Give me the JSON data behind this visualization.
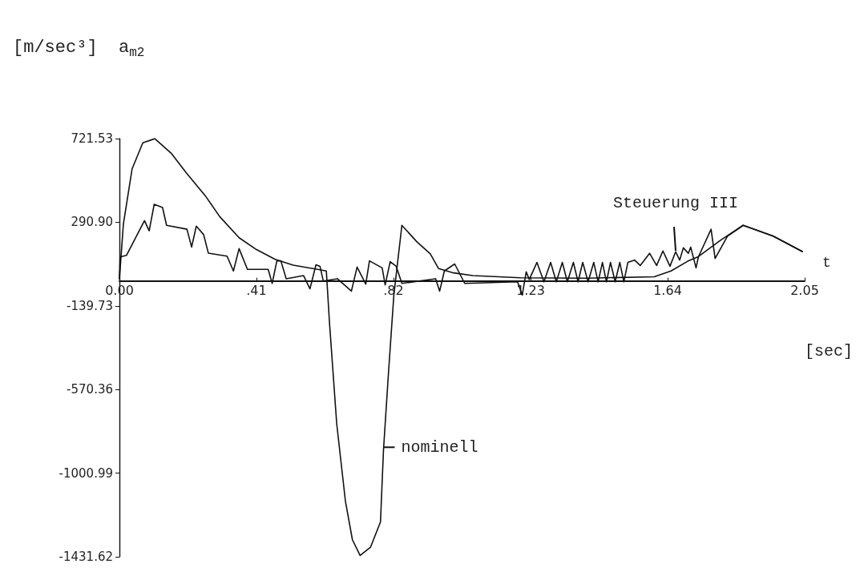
{
  "chart_data": {
    "type": "line",
    "xlabel": "t",
    "ylabel": "[m/sec³]  a$_{m2}$",
    "xlim": [
      0,
      2.05
    ],
    "xticks": [
      {
        "value": 0,
        "label": "0.00"
      },
      {
        "value": 0.41,
        "label": ".41"
      },
      {
        "value": 0.82,
        "label": ".82"
      },
      1.23,
      1.64,
      2.05
    ],
    "ylim": [
      -1431.62,
      721.53
    ],
    "yticks": [
      {
        "value": 721.53,
        "label": "721.53"
      },
      {
        "value": 290.9,
        "label": "290.90"
      },
      {
        "value": -139.73,
        "label": "-139.73"
      },
      {
        "value": -570.36,
        "label": "-570.36"
      },
      {
        "value": -1000.99,
        "label": "-1000.99"
      },
      {
        "value": -1431.62,
        "label": "-1431.62"
      }
    ],
    "grid": false,
    "marker": "none",
    "line_style": "solid",
    "series": [
      {
        "color": "#111111",
        "x": [
          0,
          0.012,
          0.038,
          0.07,
          0.106,
          0.155,
          0.2,
          0.257,
          0.3,
          0.358,
          0.41,
          0.466,
          0.52,
          0.593,
          0.619,
          0.628,
          0.65,
          0.676,
          0.697,
          0.72,
          0.751,
          0.781,
          0.79,
          0.805,
          0.821,
          0.845,
          0.89,
          0.93,
          0.955,
          1.0,
          1.057,
          1.2,
          1.4,
          1.6,
          1.65,
          1.7,
          1.73,
          1.8,
          1.866,
          1.956,
          2.043
        ],
        "values": [
          0,
          283,
          566,
          700,
          721,
          646,
          545,
          427,
          320,
          211,
          150,
          100,
          70,
          48,
          40,
          -215,
          -746,
          -1144,
          -1344,
          -1425,
          -1383,
          -1252,
          -881,
          -482,
          -84,
          275,
          190,
          128,
          52,
          30,
          16,
          5,
          3,
          10,
          40,
          90,
          112,
          200,
          275,
          219,
          140
        ]
      },
      {
        "color": "#111111",
        "x": [
          0,
          0.002,
          0.021,
          0.075,
          0.089,
          0.104,
          0.129,
          0.141,
          0.202,
          0.216,
          0.23,
          0.252,
          0.266,
          0.322,
          0.341,
          0.358,
          0.383,
          0.445,
          0.457,
          0.471,
          0.483,
          0.499,
          0.551,
          0.57,
          0.588,
          0.6,
          0.61,
          0.652,
          0.694,
          0.711,
          0.737,
          0.748,
          0.786,
          0.795,
          0.81,
          0.828,
          0.845,
          0.946,
          0.958,
          0.972,
          1.003,
          1.033,
          1.191,
          1.205,
          1.217,
          1.226,
          1.249,
          1.27,
          1.29,
          1.307,
          1.325,
          1.34,
          1.358,
          1.372,
          1.386,
          1.402,
          1.419,
          1.432,
          1.445,
          1.457,
          1.469,
          1.483,
          1.497,
          1.509,
          1.521,
          1.541,
          1.558,
          1.586,
          1.607,
          1.626,
          1.647,
          1.664,
          1.676,
          1.687,
          1.702,
          1.709,
          1.725,
          1.732,
          1.77,
          1.782,
          1.819,
          1.866,
          1.956,
          2.043
        ],
        "values": [
          0,
          112,
          120,
          299,
          247,
          383,
          367,
          275,
          255,
          163,
          271,
          227,
          132,
          116,
          40,
          155,
          48,
          48,
          -24,
          92,
          92,
          0,
          16,
          -52,
          72,
          64,
          -12,
          0,
          -64,
          60,
          -28,
          92,
          56,
          -32,
          88,
          64,
          -24,
          0,
          -64,
          40,
          76,
          -24,
          -16,
          -84,
          36,
          -4,
          84,
          -16,
          84,
          -16,
          84,
          -16,
          84,
          -16,
          84,
          -16,
          84,
          -16,
          84,
          -16,
          84,
          -16,
          84,
          -16,
          84,
          96,
          68,
          131,
          68,
          143,
          64,
          139,
          96,
          159,
          131,
          163,
          56,
          112,
          255,
          104,
          219,
          275,
          219,
          140
        ]
      }
    ],
    "annotations": [
      {
        "text": "Steuerung III",
        "x": 1.664,
        "y": 139
      },
      {
        "text": "nominell",
        "x": 0.79,
        "y": -880
      },
      "[sec]"
    ]
  }
}
